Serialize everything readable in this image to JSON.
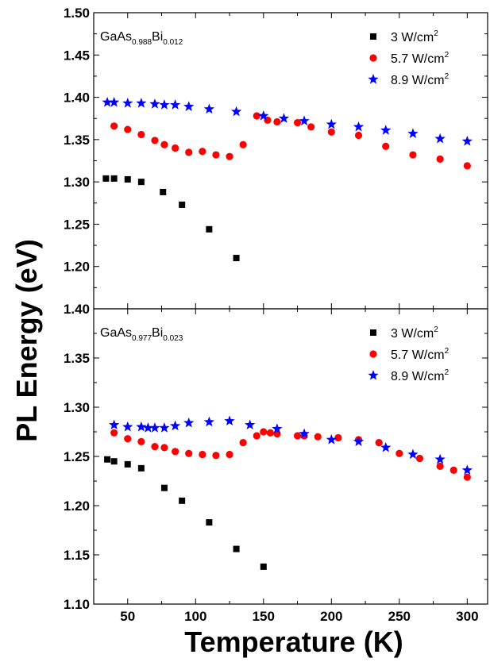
{
  "chart_data": {
    "type": "scatter",
    "xlabel": "Temperature (K)",
    "ylabel": "PL Energy (eV)",
    "xlim": [
      25,
      315
    ],
    "xticks": [
      50,
      100,
      150,
      200,
      250,
      300
    ],
    "panels": [
      {
        "sample": {
          "base": "GaAs",
          "sub1": "0.988",
          "mid": "Bi",
          "sub2": "0.012"
        },
        "ylim": [
          1.15,
          1.5
        ],
        "yticks": [
          1.2,
          1.25,
          1.3,
          1.35,
          1.4,
          1.45,
          1.5
        ],
        "series": [
          {
            "name": "3 W/cm",
            "sup": "2",
            "marker": "square",
            "color": "#000000",
            "points": [
              [
                34,
                1.304
              ],
              [
                40,
                1.304
              ],
              [
                50,
                1.303
              ],
              [
                60,
                1.3
              ],
              [
                76,
                1.288
              ],
              [
                90,
                1.273
              ],
              [
                110,
                1.244
              ],
              [
                130,
                1.21
              ]
            ]
          },
          {
            "name": "5.7 W/cm",
            "sup": "2",
            "marker": "circle",
            "color": "#ff0000",
            "points": [
              [
                40,
                1.366
              ],
              [
                50,
                1.362
              ],
              [
                60,
                1.356
              ],
              [
                70,
                1.349
              ],
              [
                77,
                1.344
              ],
              [
                85,
                1.34
              ],
              [
                95,
                1.335
              ],
              [
                105,
                1.336
              ],
              [
                115,
                1.332
              ],
              [
                125,
                1.33
              ],
              [
                135,
                1.344
              ],
              [
                145,
                1.378
              ],
              [
                153,
                1.373
              ],
              [
                160,
                1.371
              ],
              [
                175,
                1.37
              ],
              [
                185,
                1.365
              ],
              [
                200,
                1.359
              ],
              [
                220,
                1.355
              ],
              [
                240,
                1.342
              ],
              [
                260,
                1.332
              ],
              [
                280,
                1.327
              ],
              [
                300,
                1.319
              ]
            ]
          },
          {
            "name": "8.9 W/cm",
            "sup": "2",
            "marker": "star",
            "color": "#0000ff",
            "points": [
              [
                35,
                1.394
              ],
              [
                40,
                1.394
              ],
              [
                50,
                1.393
              ],
              [
                60,
                1.393
              ],
              [
                70,
                1.392
              ],
              [
                77,
                1.391
              ],
              [
                85,
                1.391
              ],
              [
                95,
                1.389
              ],
              [
                110,
                1.386
              ],
              [
                130,
                1.383
              ],
              [
                150,
                1.378
              ],
              [
                165,
                1.375
              ],
              [
                180,
                1.372
              ],
              [
                200,
                1.368
              ],
              [
                220,
                1.365
              ],
              [
                240,
                1.361
              ],
              [
                260,
                1.357
              ],
              [
                280,
                1.351
              ],
              [
                300,
                1.348
              ]
            ]
          }
        ]
      },
      {
        "sample": {
          "base": "GaAs",
          "sub1": "0.977",
          "mid": "Bi",
          "sub2": "0.023"
        },
        "ylim": [
          1.1,
          1.4
        ],
        "yticks": [
          1.1,
          1.15,
          1.2,
          1.25,
          1.3,
          1.35,
          1.4
        ],
        "series": [
          {
            "name": "3 W/cm",
            "sup": "2",
            "marker": "square",
            "color": "#000000",
            "points": [
              [
                35,
                1.247
              ],
              [
                40,
                1.245
              ],
              [
                50,
                1.242
              ],
              [
                60,
                1.238
              ],
              [
                77,
                1.218
              ],
              [
                90,
                1.205
              ],
              [
                110,
                1.183
              ],
              [
                130,
                1.156
              ],
              [
                150,
                1.138
              ]
            ]
          },
          {
            "name": "5.7 W/cm",
            "sup": "2",
            "marker": "circle",
            "color": "#ff0000",
            "points": [
              [
                40,
                1.274
              ],
              [
                50,
                1.268
              ],
              [
                60,
                1.265
              ],
              [
                70,
                1.26
              ],
              [
                77,
                1.259
              ],
              [
                85,
                1.255
              ],
              [
                95,
                1.253
              ],
              [
                105,
                1.252
              ],
              [
                115,
                1.251
              ],
              [
                125,
                1.252
              ],
              [
                135,
                1.264
              ],
              [
                145,
                1.271
              ],
              [
                150,
                1.275
              ],
              [
                155,
                1.274
              ],
              [
                160,
                1.273
              ],
              [
                175,
                1.271
              ],
              [
                180,
                1.271
              ],
              [
                190,
                1.27
              ],
              [
                205,
                1.269
              ],
              [
                220,
                1.267
              ],
              [
                235,
                1.264
              ],
              [
                250,
                1.253
              ],
              [
                265,
                1.248
              ],
              [
                280,
                1.24
              ],
              [
                290,
                1.236
              ],
              [
                300,
                1.229
              ]
            ]
          },
          {
            "name": "8.9 W/cm",
            "sup": "2",
            "marker": "star",
            "color": "#0000ff",
            "points": [
              [
                40,
                1.282
              ],
              [
                50,
                1.28
              ],
              [
                60,
                1.28
              ],
              [
                65,
                1.279
              ],
              [
                70,
                1.279
              ],
              [
                77,
                1.279
              ],
              [
                85,
                1.281
              ],
              [
                95,
                1.284
              ],
              [
                110,
                1.285
              ],
              [
                125,
                1.286
              ],
              [
                140,
                1.282
              ],
              [
                160,
                1.278
              ],
              [
                180,
                1.273
              ],
              [
                200,
                1.267
              ],
              [
                220,
                1.265
              ],
              [
                240,
                1.259
              ],
              [
                260,
                1.252
              ],
              [
                280,
                1.247
              ],
              [
                300,
                1.236
              ]
            ]
          }
        ]
      }
    ]
  }
}
